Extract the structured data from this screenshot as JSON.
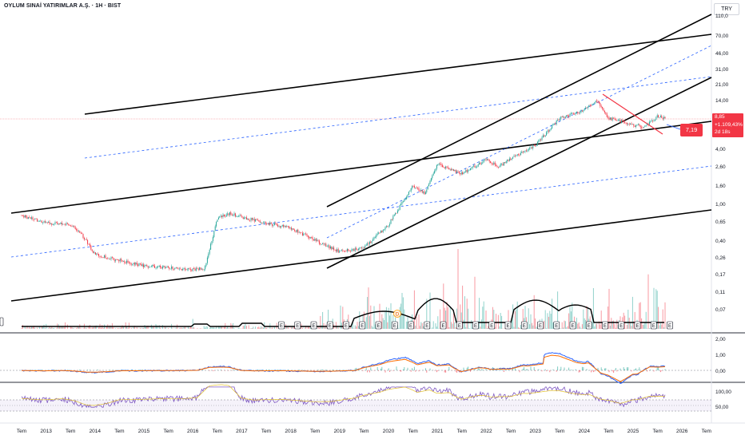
{
  "header": {
    "title": "OYLUM SINAİ YATIRIMLAR A.Ş. · 1H · BIST",
    "currency": "TRY"
  },
  "price_axis": {
    "labels": [
      "110,0",
      "70,00",
      "46,00",
      "31,00",
      "21,00",
      "14,00",
      "4,00",
      "2,60",
      "1,60",
      "1,00",
      "0,65",
      "0,40",
      "0,26",
      "0,17",
      "0,11",
      "0,07"
    ]
  },
  "price_badge": {
    "price": "8,85",
    "change": "+1.109,43%",
    "countdown": "2d 18s"
  },
  "target_label": "7,19",
  "macd_axis": {
    "labels": [
      "2,00",
      "1,00",
      "0,00"
    ]
  },
  "rsi_axis": {
    "labels": [
      "100,00",
      "50,00"
    ]
  },
  "time_axis": {
    "labels": [
      "Tem",
      "2013",
      "Tem",
      "2014",
      "Tem",
      "2015",
      "Tem",
      "2016",
      "Tem",
      "2017",
      "Tem",
      "2018",
      "Tem",
      "2019",
      "Tem",
      "2020",
      "Tem",
      "2021",
      "Tem",
      "2022",
      "Tem",
      "2023",
      "Tem",
      "2024",
      "Tem",
      "2025",
      "Tem",
      "2026",
      "Tem"
    ]
  },
  "events": {
    "earnings_marker": "E",
    "dividend_marker": "D",
    "earnings_count": 25
  },
  "colors": {
    "up": "#26a69a",
    "down": "#f23645",
    "channel": "#000000",
    "dashed": "#2962ff",
    "macd": "#2962ff",
    "signal": "#ff6d00",
    "rsi": "#7e57c2"
  },
  "chart_data": {
    "type": "candlestick",
    "scale": "log",
    "x_range": [
      "2012-07",
      "2026-07"
    ],
    "y_range": [
      0.06,
      110
    ],
    "last_price": 8.85,
    "approx_path": [
      [
        "2012-07",
        0.75
      ],
      [
        "2013-01",
        0.62
      ],
      [
        "2013-07",
        0.6
      ],
      [
        "2013-10",
        0.45
      ],
      [
        "2014-01",
        0.28
      ],
      [
        "2014-07",
        0.24
      ],
      [
        "2015-01",
        0.21
      ],
      [
        "2015-07",
        0.2
      ],
      [
        "2016-01",
        0.19
      ],
      [
        "2016-04",
        0.2
      ],
      [
        "2016-07",
        0.7
      ],
      [
        "2016-10",
        0.8
      ],
      [
        "2017-01",
        0.72
      ],
      [
        "2017-07",
        0.62
      ],
      [
        "2018-01",
        0.55
      ],
      [
        "2018-07",
        0.4
      ],
      [
        "2019-01",
        0.3
      ],
      [
        "2019-07",
        0.33
      ],
      [
        "2020-01",
        0.6
      ],
      [
        "2020-07",
        1.6
      ],
      [
        "2020-10",
        1.3
      ],
      [
        "2021-01",
        2.8
      ],
      [
        "2021-07",
        2.2
      ],
      [
        "2022-01",
        3.1
      ],
      [
        "2022-04",
        2.6
      ],
      [
        "2022-07",
        3.2
      ],
      [
        "2023-01",
        4.5
      ],
      [
        "2023-07",
        9.0
      ],
      [
        "2024-01",
        11.0
      ],
      [
        "2024-04",
        14.0
      ],
      [
        "2024-07",
        9.0
      ],
      [
        "2025-01",
        7.5
      ],
      [
        "2025-04",
        7.2
      ],
      [
        "2025-07",
        9.5
      ],
      [
        "2025-09",
        8.85
      ]
    ]
  }
}
